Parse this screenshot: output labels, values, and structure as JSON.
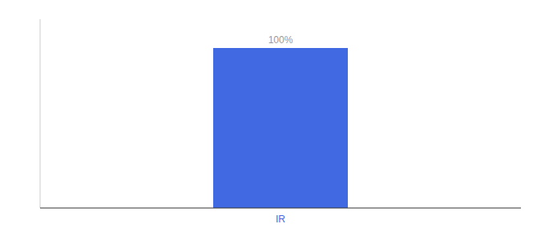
{
  "chart_data": {
    "type": "bar",
    "categories": [
      "IR"
    ],
    "values": [
      100
    ],
    "value_labels": [
      "100%"
    ],
    "color": "#4169e1",
    "ylim": [
      0,
      118
    ],
    "data_labels": true,
    "tick_labels": "x",
    "grid": false
  }
}
